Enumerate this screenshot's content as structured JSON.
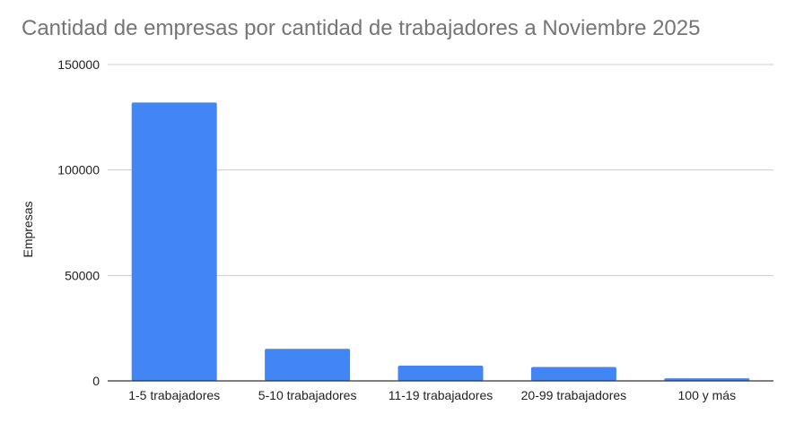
{
  "chart_data": {
    "type": "bar",
    "title": "Cantidad de empresas por cantidad de trabajadores a Noviembre 2025",
    "xlabel": "",
    "ylabel": "Empresas",
    "categories": [
      "1-5 trabajadores",
      "5-10 trabajadores",
      "11-19 trabajadores",
      "20-99 trabajadores",
      "100 y más"
    ],
    "values": [
      132000,
      15200,
      7200,
      6600,
      1200
    ],
    "ylim": [
      0,
      150000
    ],
    "yticks": [
      "0",
      "50000",
      "100000",
      "150000"
    ],
    "grid": true,
    "legend": "none",
    "bar_color": "#4285F4"
  }
}
